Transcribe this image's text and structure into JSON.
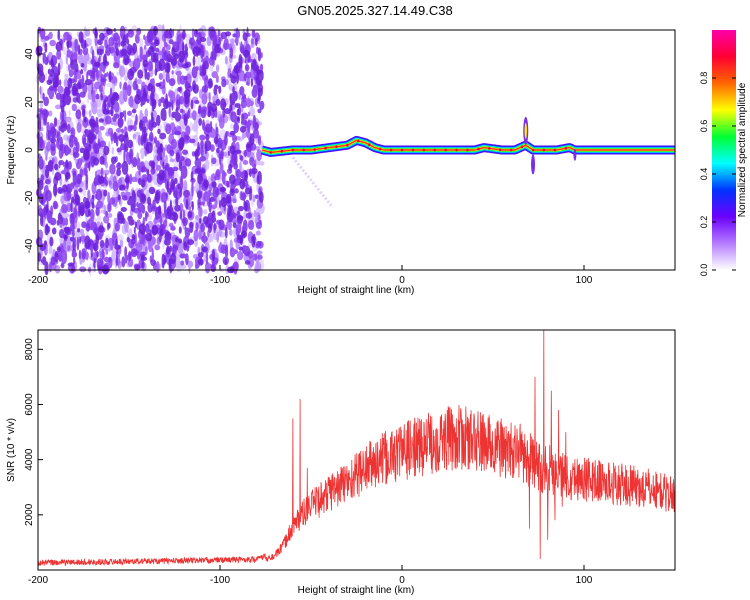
{
  "title": "GN05.2025.327.14.49.C38",
  "chart_data": [
    {
      "type": "heatmap",
      "title": "",
      "xlabel": "Height of straight line (km)",
      "ylabel": "Frequency (Hz)",
      "xlim": [
        -200,
        150
      ],
      "ylim": [
        -50,
        50
      ],
      "xticks": [
        -200,
        -100,
        0,
        100
      ],
      "yticks": [
        -40,
        -20,
        0,
        20,
        40
      ],
      "colorbar": {
        "label": "Normalized spectral amplitude",
        "range": [
          0,
          1
        ],
        "ticks": [
          0.0,
          0.2,
          0.4,
          0.6,
          0.8
        ],
        "tick_labels": [
          "0.0",
          "0.2",
          "0.4",
          "0.6",
          "0.8"
        ],
        "colors": [
          "#ffffff",
          "#b57cff",
          "#6a00ff",
          "#0033ff",
          "#00ffff",
          "#00ff33",
          "#ffff00",
          "#ff6600",
          "#ff0033",
          "#ff00aa"
        ]
      },
      "noise_region_x": [
        -200,
        -77
      ],
      "ridge": {
        "x": [
          -77,
          -72,
          -60,
          -50,
          -40,
          -30,
          -25,
          -20,
          -15,
          -10,
          -5,
          0,
          20,
          40,
          45,
          55,
          62,
          68,
          72,
          75,
          85,
          92,
          95,
          150
        ],
        "y": [
          0,
          -1,
          0,
          0,
          1,
          2,
          4,
          3,
          1,
          0,
          0,
          0,
          0,
          0,
          1,
          0,
          0,
          2,
          0,
          0,
          0,
          1,
          0,
          0
        ]
      }
    },
    {
      "type": "line",
      "title": "",
      "xlabel": "Height of straight line (km)",
      "ylabel": "SNR (10 * v/v)",
      "xlim": [
        -200,
        150
      ],
      "ylim": [
        0,
        8700
      ],
      "xticks": [
        -200,
        -100,
        0,
        100
      ],
      "yticks": [
        2000,
        4000,
        6000,
        8000
      ],
      "color": "#ee3333",
      "envelope": {
        "x": [
          -200,
          -150,
          -100,
          -80,
          -70,
          -65,
          -60,
          -55,
          -50,
          -40,
          -30,
          -20,
          -10,
          0,
          10,
          20,
          30,
          40,
          50,
          60,
          65,
          70,
          75,
          80,
          90,
          100,
          110,
          120,
          130,
          140,
          150
        ],
        "y": [
          150,
          200,
          250,
          280,
          500,
          900,
          1600,
          2000,
          2300,
          2800,
          3200,
          3700,
          4000,
          4300,
          4500,
          4700,
          4800,
          4700,
          4500,
          4300,
          4200,
          4000,
          3700,
          3700,
          3400,
          3300,
          3200,
          3100,
          3000,
          2900,
          2700
        ]
      },
      "spikes": [
        {
          "x": -56,
          "y": 6200
        },
        {
          "x": -60,
          "y": 5500
        },
        {
          "x": -52,
          "y": 3700
        },
        {
          "x": -47,
          "y": 3000
        },
        {
          "x": -38,
          "y": 3500
        },
        {
          "x": -35,
          "y": 3000
        },
        {
          "x": 65,
          "y": 5300
        },
        {
          "x": 70,
          "y": 6400
        },
        {
          "x": 73,
          "y": 7000
        },
        {
          "x": 78,
          "y": 8700
        },
        {
          "x": 82,
          "y": 6500
        },
        {
          "x": 86,
          "y": 5800
        },
        {
          "x": 90,
          "y": 5000
        }
      ],
      "dips": [
        {
          "x": 76,
          "y": 400
        },
        {
          "x": 70,
          "y": 1500
        },
        {
          "x": 80,
          "y": 1100
        },
        {
          "x": 84,
          "y": 1800
        },
        {
          "x": 88,
          "y": 2300
        }
      ]
    }
  ]
}
